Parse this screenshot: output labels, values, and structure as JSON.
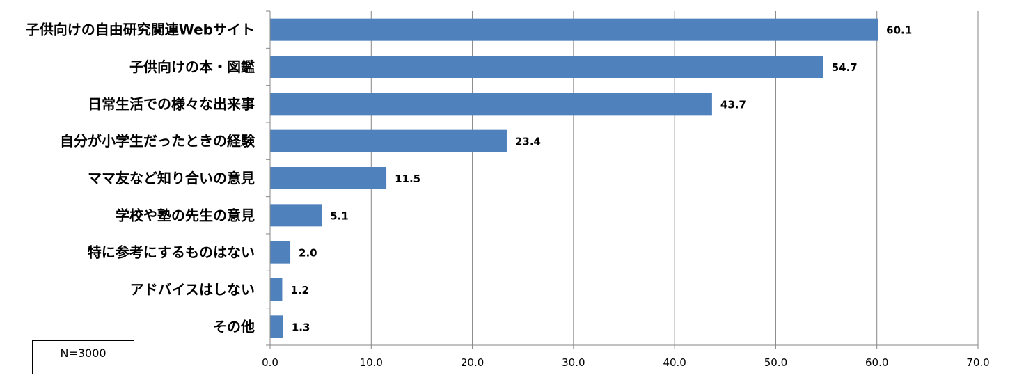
{
  "chart_data": {
    "type": "bar",
    "orientation": "horizontal",
    "categories": [
      "子供向けの自由研究関連Webサイト",
      "子供向けの本・図鑑",
      "日常生活での様々な出来事",
      "自分が小学生だったときの経験",
      "ママ友など知り合いの意見",
      "学校や塾の先生の意見",
      "特に参考にするものはない",
      "アドバイスはしない",
      "その他"
    ],
    "values": [
      60.1,
      54.7,
      43.7,
      23.4,
      11.5,
      5.1,
      2.0,
      1.2,
      1.3
    ],
    "value_labels": [
      "60.1",
      "54.7",
      "43.7",
      "23.4",
      "11.5",
      "5.1",
      "2.0",
      "1.2",
      "1.3"
    ],
    "xlim": [
      0,
      70
    ],
    "x_ticks": [
      "0.0",
      "10.0",
      "20.0",
      "30.0",
      "40.0",
      "50.0",
      "60.0",
      "70.0"
    ],
    "grid": "vertical",
    "bar_color": "#4f81bd",
    "title": "",
    "xlabel": "",
    "ylabel": ""
  },
  "note_box": {
    "text": "N=3000"
  }
}
